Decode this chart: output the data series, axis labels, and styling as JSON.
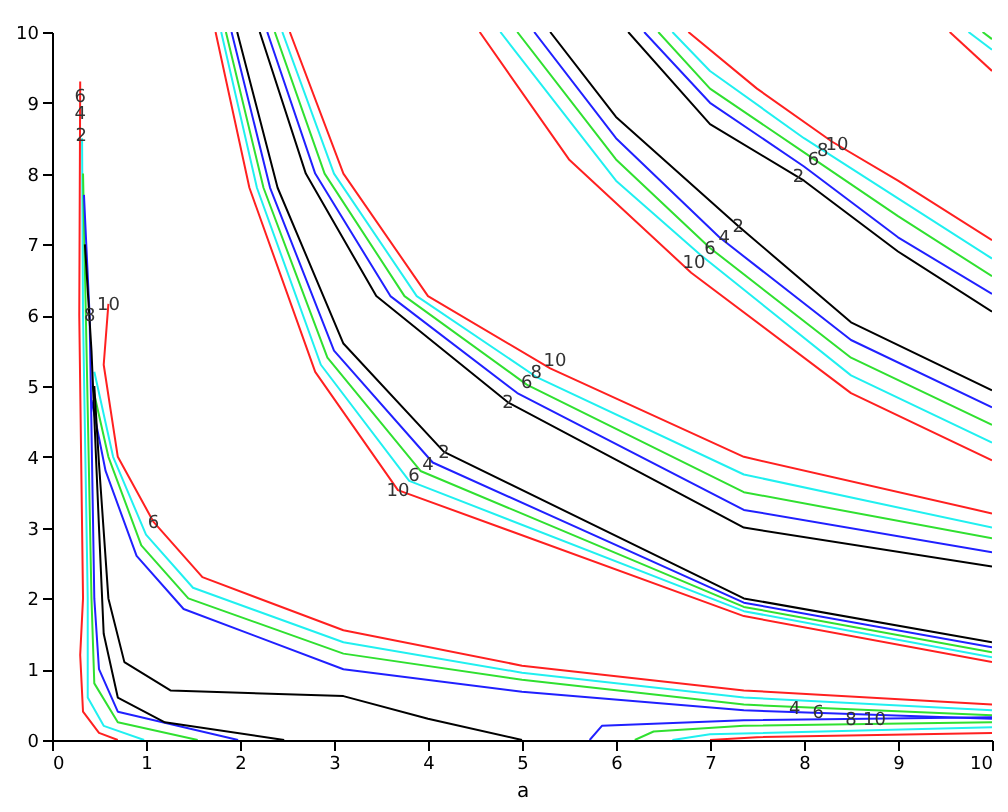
{
  "chart_data": {
    "type": "line",
    "xlabel": "a",
    "xlim": [
      0,
      10
    ],
    "ylim": [
      0,
      10
    ],
    "xticks": [
      0,
      1,
      2,
      3,
      4,
      5,
      6,
      7,
      8,
      9,
      10
    ],
    "yticks": [
      0,
      1,
      2,
      3,
      4,
      5,
      6,
      7,
      8,
      9,
      10
    ],
    "grid": false,
    "series": [
      {
        "color": "#000000",
        "x": [
          6.13,
          7,
          8,
          9,
          10
        ],
        "values": [
          10,
          8.7,
          7.9,
          6.9,
          6.05
        ]
      },
      {
        "color": "#2020ff",
        "x": [
          6.3,
          7,
          8,
          9,
          10
        ],
        "values": [
          10,
          9.0,
          8.1,
          7.1,
          6.3
        ]
      },
      {
        "color": "#30e030",
        "x": [
          6.45,
          7,
          8,
          9,
          10
        ],
        "values": [
          10,
          9.2,
          8.3,
          7.4,
          6.55
        ]
      },
      {
        "color": "#20f0f0",
        "x": [
          6.6,
          7,
          8,
          9,
          10
        ],
        "values": [
          10,
          9.45,
          8.5,
          7.65,
          6.8
        ]
      },
      {
        "color": "#ff2020",
        "x": [
          6.77,
          7.5,
          8.3,
          9,
          10
        ],
        "values": [
          10,
          9.2,
          8.45,
          7.9,
          7.06
        ]
      },
      {
        "color": "#000000",
        "x": [
          5.3,
          6,
          7.3,
          8.5,
          10
        ],
        "values": [
          10,
          8.8,
          7.26,
          5.9,
          4.94
        ]
      },
      {
        "color": "#2020ff",
        "x": [
          5.13,
          6,
          7.1,
          8.5,
          10
        ],
        "values": [
          10,
          8.5,
          7.1,
          5.65,
          4.7
        ]
      },
      {
        "color": "#30e030",
        "x": [
          4.95,
          6,
          7,
          8.5,
          10
        ],
        "values": [
          10,
          8.2,
          6.95,
          5.4,
          4.45
        ]
      },
      {
        "color": "#20f0f0",
        "x": [
          4.77,
          6,
          6.9,
          8.5,
          10
        ],
        "values": [
          10,
          7.9,
          6.85,
          5.15,
          4.2
        ]
      },
      {
        "color": "#ff2020",
        "x": [
          4.55,
          5.5,
          6.8,
          8.5,
          10
        ],
        "values": [
          10,
          8.2,
          6.6,
          4.9,
          3.95
        ]
      },
      {
        "color": "#000000",
        "x": [
          2.21,
          2.7,
          3.45,
          4.85,
          7.36,
          10
        ],
        "values": [
          10,
          8,
          6.27,
          4.77,
          3.0,
          2.45
        ]
      },
      {
        "color": "#2020ff",
        "x": [
          2.29,
          2.8,
          3.6,
          4.95,
          7.36,
          10
        ],
        "values": [
          10,
          8,
          6.27,
          4.9,
          3.25,
          2.65
        ]
      },
      {
        "color": "#30e030",
        "x": [
          2.37,
          2.9,
          3.75,
          5.05,
          7.36,
          10
        ],
        "values": [
          10,
          8,
          6.27,
          5.02,
          3.5,
          2.85
        ]
      },
      {
        "color": "#20f0f0",
        "x": [
          2.45,
          3.0,
          3.88,
          5.15,
          7.36,
          10
        ],
        "values": [
          10,
          8,
          6.27,
          5.13,
          3.75,
          3.0
        ]
      },
      {
        "color": "#ff2020",
        "x": [
          2.53,
          3.1,
          4.0,
          5.3,
          7.36,
          10
        ],
        "values": [
          10,
          8,
          6.27,
          5.25,
          4.0,
          3.2
        ]
      },
      {
        "color": "#000000",
        "x": [
          1.97,
          2.4,
          3.1,
          4.17,
          7.36,
          10
        ],
        "values": [
          10,
          7.8,
          5.6,
          4.07,
          2.0,
          1.38
        ]
      },
      {
        "color": "#2020ff",
        "x": [
          1.91,
          2.32,
          3.0,
          4.05,
          7.36,
          10
        ],
        "values": [
          10,
          7.8,
          5.5,
          3.92,
          1.94,
          1.31
        ]
      },
      {
        "color": "#30e030",
        "x": [
          1.85,
          2.25,
          2.93,
          3.92,
          7.36,
          10
        ],
        "values": [
          10,
          7.8,
          5.4,
          3.8,
          1.88,
          1.24
        ]
      },
      {
        "color": "#20f0f0",
        "x": [
          1.8,
          2.18,
          2.86,
          3.8,
          7.36,
          10
        ],
        "values": [
          10,
          7.8,
          5.3,
          3.66,
          1.82,
          1.17
        ]
      },
      {
        "color": "#ff2020",
        "x": [
          1.74,
          2.1,
          2.8,
          3.68,
          7.36,
          10
        ],
        "values": [
          10,
          7.8,
          5.2,
          3.53,
          1.75,
          1.1
        ]
      },
      {
        "color": "#ff2020",
        "x": [
          0.6,
          0.55,
          0.7,
          1.08,
          1.6,
          3.1,
          5,
          7.36,
          10
        ],
        "values": [
          6.16,
          5.3,
          4.0,
          3.08,
          2.3,
          1.55,
          1.05,
          0.7,
          0.5
        ]
      },
      {
        "color": "#20f0f0",
        "x": [
          0.45,
          0.65,
          1.0,
          1.5,
          3.1,
          5,
          7.36,
          10
        ],
        "values": [
          5.2,
          4.0,
          2.9,
          2.15,
          1.38,
          0.95,
          0.6,
          0.42
        ]
      },
      {
        "color": "#30e030",
        "x": [
          0.43,
          0.6,
          0.95,
          1.45,
          3.1,
          5,
          7.36,
          10
        ],
        "values": [
          5.0,
          4.0,
          2.75,
          2.0,
          1.22,
          0.85,
          0.5,
          0.35
        ]
      },
      {
        "color": "#2020ff",
        "x": [
          0.42,
          0.57,
          0.9,
          1.4,
          3.1,
          5,
          7.36,
          10
        ],
        "values": [
          4.8,
          3.8,
          2.6,
          1.85,
          1.0,
          0.68,
          0.42,
          0.3
        ]
      },
      {
        "color": "#000000",
        "x": [
          0.45,
          0.5,
          0.6,
          0.77,
          1.26,
          3.1,
          4,
          5
        ],
        "values": [
          5.0,
          3.9,
          2.0,
          1.1,
          0.7,
          0.62,
          0.3,
          0
        ]
      },
      {
        "color": "#ff2020",
        "x": [
          0.3,
          0.29,
          0.33,
          0.3,
          0.33,
          0.5,
          0.7
        ],
        "values": [
          9.3,
          6,
          2,
          1.2,
          0.4,
          0.1,
          0
        ]
      },
      {
        "color": "#20f0f0",
        "x": [
          0.32,
          0.33,
          0.38,
          0.38,
          0.55,
          0.98
        ],
        "values": [
          8.5,
          6,
          2,
          0.6,
          0.2,
          0
        ]
      },
      {
        "color": "#30e030",
        "x": [
          0.33,
          0.36,
          0.42,
          0.45,
          0.7,
          1.55
        ],
        "values": [
          8.0,
          6,
          2,
          0.8,
          0.25,
          0
        ]
      },
      {
        "color": "#2020ff",
        "x": [
          0.34,
          0.4,
          0.45,
          0.5,
          0.7,
          1.98
        ],
        "values": [
          7.7,
          6,
          2,
          1.0,
          0.4,
          0
        ]
      },
      {
        "color": "#000000",
        "x": [
          0.35,
          0.42,
          0.5,
          0.55,
          0.7,
          1.2,
          2.47
        ],
        "values": [
          7.0,
          5.5,
          3.0,
          1.5,
          0.6,
          0.25,
          0
        ]
      },
      {
        "color": "#2020ff",
        "x": [
          5.72,
          5.85,
          7.36,
          10
        ],
        "values": [
          0,
          0.2,
          0.28,
          0.32
        ]
      },
      {
        "color": "#30e030",
        "x": [
          6.2,
          6.4,
          7.36,
          10
        ],
        "values": [
          0,
          0.12,
          0.2,
          0.25
        ]
      },
      {
        "color": "#20f0f0",
        "x": [
          6.6,
          7,
          10
        ],
        "values": [
          0,
          0.08,
          0.18
        ]
      },
      {
        "color": "#ff2020",
        "x": [
          7.0,
          7.5,
          10
        ],
        "values": [
          0,
          0.04,
          0.1
        ]
      },
      {
        "color": "#ff2020",
        "x": [
          9.55,
          10
        ],
        "values": [
          10,
          9.45
        ]
      },
      {
        "color": "#20f0f0",
        "x": [
          9.75,
          10
        ],
        "values": [
          10,
          9.75
        ]
      },
      {
        "color": "#30e030",
        "x": [
          9.9,
          10
        ],
        "values": [
          10,
          9.9
        ]
      }
    ],
    "annotations": [
      {
        "text": "2",
        "x": 7.94,
        "y": 7.97
      },
      {
        "text": "6",
        "x": 8.1,
        "y": 8.21
      },
      {
        "text": "8",
        "x": 8.2,
        "y": 8.33
      },
      {
        "text": "10",
        "x": 8.35,
        "y": 8.42
      },
      {
        "text": "10",
        "x": 6.83,
        "y": 6.75
      },
      {
        "text": "6",
        "x": 7.0,
        "y": 6.95
      },
      {
        "text": "4",
        "x": 7.15,
        "y": 7.1
      },
      {
        "text": "2",
        "x": 7.3,
        "y": 7.26
      },
      {
        "text": "2",
        "x": 4.85,
        "y": 4.77
      },
      {
        "text": "6",
        "x": 5.05,
        "y": 5.05
      },
      {
        "text": "8",
        "x": 5.15,
        "y": 5.2
      },
      {
        "text": "10",
        "x": 5.35,
        "y": 5.37
      },
      {
        "text": "10",
        "x": 3.68,
        "y": 3.53
      },
      {
        "text": "6",
        "x": 3.85,
        "y": 3.75
      },
      {
        "text": "4",
        "x": 4.0,
        "y": 3.9
      },
      {
        "text": "2",
        "x": 4.17,
        "y": 4.07
      },
      {
        "text": "6",
        "x": 0.3,
        "y": 9.1
      },
      {
        "text": "4",
        "x": 0.3,
        "y": 8.85
      },
      {
        "text": "2",
        "x": 0.31,
        "y": 8.55
      },
      {
        "text": "8",
        "x": 0.4,
        "y": 6.0
      },
      {
        "text": "10",
        "x": 0.6,
        "y": 6.16
      },
      {
        "text": "6",
        "x": 1.08,
        "y": 3.08
      },
      {
        "text": "4",
        "x": 7.9,
        "y": 0.45
      },
      {
        "text": "6",
        "x": 8.15,
        "y": 0.4
      },
      {
        "text": "8",
        "x": 8.5,
        "y": 0.3
      },
      {
        "text": "10",
        "x": 8.75,
        "y": 0.3
      }
    ]
  }
}
